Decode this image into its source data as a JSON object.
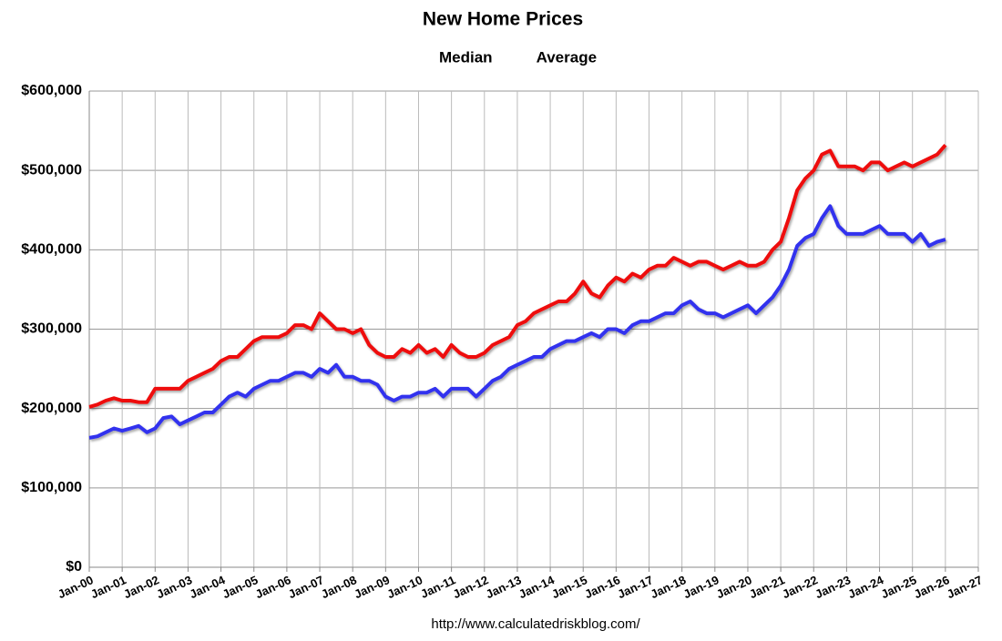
{
  "chart_data": {
    "type": "line",
    "title": "New Home Prices",
    "source": "http://www.calculatedriskblog.com/",
    "x": [
      "2000-01",
      "2000-04",
      "2000-07",
      "2000-10",
      "2001-01",
      "2001-04",
      "2001-07",
      "2001-10",
      "2002-01",
      "2002-04",
      "2002-07",
      "2002-10",
      "2003-01",
      "2003-04",
      "2003-07",
      "2003-10",
      "2004-01",
      "2004-04",
      "2004-07",
      "2004-10",
      "2005-01",
      "2005-04",
      "2005-07",
      "2005-10",
      "2006-01",
      "2006-04",
      "2006-07",
      "2006-10",
      "2007-01",
      "2007-04",
      "2007-07",
      "2007-10",
      "2008-01",
      "2008-04",
      "2008-07",
      "2008-10",
      "2009-01",
      "2009-04",
      "2009-07",
      "2009-10",
      "2010-01",
      "2010-04",
      "2010-07",
      "2010-10",
      "2011-01",
      "2011-04",
      "2011-07",
      "2011-10",
      "2012-01",
      "2012-04",
      "2012-07",
      "2012-10",
      "2013-01",
      "2013-04",
      "2013-07",
      "2013-10",
      "2014-01",
      "2014-04",
      "2014-07",
      "2014-10",
      "2015-01",
      "2015-04",
      "2015-07",
      "2015-10",
      "2016-01",
      "2016-04",
      "2016-07",
      "2016-10",
      "2017-01",
      "2017-04",
      "2017-07",
      "2017-10",
      "2018-01",
      "2018-04",
      "2018-07",
      "2018-10",
      "2019-01",
      "2019-04",
      "2019-07",
      "2019-10",
      "2020-01",
      "2020-04",
      "2020-07",
      "2020-10",
      "2021-01",
      "2021-04",
      "2021-07",
      "2021-10",
      "2022-01",
      "2022-04",
      "2022-07",
      "2022-10",
      "2023-01",
      "2023-04",
      "2023-07",
      "2023-10",
      "2024-01",
      "2024-04",
      "2024-07",
      "2024-10",
      "2025-01",
      "2025-04",
      "2025-07",
      "2025-10",
      "2026-01"
    ],
    "series": [
      {
        "name": "Median",
        "color": "#3333ee",
        "values": [
          163000,
          165000,
          170000,
          175000,
          172000,
          175000,
          178000,
          170000,
          175000,
          188000,
          190000,
          180000,
          185000,
          190000,
          195000,
          195000,
          205000,
          215000,
          220000,
          215000,
          225000,
          230000,
          235000,
          235000,
          240000,
          245000,
          245000,
          240000,
          250000,
          245000,
          255000,
          240000,
          240000,
          235000,
          235000,
          230000,
          215000,
          210000,
          215000,
          215000,
          220000,
          220000,
          225000,
          215000,
          225000,
          225000,
          225000,
          215000,
          225000,
          235000,
          240000,
          250000,
          255000,
          260000,
          265000,
          265000,
          275000,
          280000,
          285000,
          285000,
          290000,
          295000,
          290000,
          300000,
          300000,
          295000,
          305000,
          310000,
          310000,
          315000,
          320000,
          320000,
          330000,
          335000,
          325000,
          320000,
          320000,
          315000,
          320000,
          325000,
          330000,
          320000,
          330000,
          340000,
          355000,
          375000,
          405000,
          415000,
          420000,
          440000,
          455000,
          430000,
          420000,
          420000,
          420000,
          425000,
          430000,
          420000,
          420000,
          420000,
          410000,
          420000,
          405000,
          410000,
          413000
        ]
      },
      {
        "name": "Average",
        "color": "#ee1111",
        "values": [
          202000,
          205000,
          210000,
          213000,
          210000,
          210000,
          208000,
          208000,
          225000,
          225000,
          225000,
          225000,
          235000,
          240000,
          245000,
          250000,
          260000,
          265000,
          265000,
          275000,
          285000,
          290000,
          290000,
          290000,
          295000,
          305000,
          305000,
          300000,
          320000,
          310000,
          300000,
          300000,
          295000,
          300000,
          280000,
          270000,
          265000,
          265000,
          275000,
          270000,
          280000,
          270000,
          275000,
          265000,
          280000,
          270000,
          265000,
          265000,
          270000,
          280000,
          285000,
          290000,
          305000,
          310000,
          320000,
          325000,
          330000,
          335000,
          335000,
          345000,
          360000,
          345000,
          340000,
          355000,
          365000,
          360000,
          370000,
          365000,
          375000,
          380000,
          380000,
          390000,
          385000,
          380000,
          385000,
          385000,
          380000,
          375000,
          380000,
          385000,
          380000,
          380000,
          385000,
          400000,
          410000,
          440000,
          475000,
          490000,
          500000,
          520000,
          525000,
          505000,
          505000,
          505000,
          500000,
          510000,
          510000,
          500000,
          505000,
          510000,
          505000,
          510000,
          515000,
          520000,
          532000
        ]
      }
    ],
    "ylim": [
      0,
      600000
    ],
    "yticks": [
      {
        "value": 0,
        "label": "$0"
      },
      {
        "value": 100000,
        "label": "$100,000"
      },
      {
        "value": 200000,
        "label": "$200,000"
      },
      {
        "value": 300000,
        "label": "$300,000"
      },
      {
        "value": 400000,
        "label": "$400,000"
      },
      {
        "value": 500000,
        "label": "$500,000"
      },
      {
        "value": 600000,
        "label": "$600,000"
      }
    ],
    "xlim": [
      "2000-01",
      "2027-01"
    ],
    "xticks": [
      {
        "value": "2000-01",
        "label": "Jan-00"
      },
      {
        "value": "2001-01",
        "label": "Jan-01"
      },
      {
        "value": "2002-01",
        "label": "Jan-02"
      },
      {
        "value": "2003-01",
        "label": "Jan-03"
      },
      {
        "value": "2004-01",
        "label": "Jan-04"
      },
      {
        "value": "2005-01",
        "label": "Jan-05"
      },
      {
        "value": "2006-01",
        "label": "Jan-06"
      },
      {
        "value": "2007-01",
        "label": "Jan-07"
      },
      {
        "value": "2008-01",
        "label": "Jan-08"
      },
      {
        "value": "2009-01",
        "label": "Jan-09"
      },
      {
        "value": "2010-01",
        "label": "Jan-10"
      },
      {
        "value": "2011-01",
        "label": "Jan-11"
      },
      {
        "value": "2012-01",
        "label": "Jan-12"
      },
      {
        "value": "2013-01",
        "label": "Jan-13"
      },
      {
        "value": "2014-01",
        "label": "Jan-14"
      },
      {
        "value": "2015-01",
        "label": "Jan-15"
      },
      {
        "value": "2016-01",
        "label": "Jan-16"
      },
      {
        "value": "2017-01",
        "label": "Jan-17"
      },
      {
        "value": "2018-01",
        "label": "Jan-18"
      },
      {
        "value": "2019-01",
        "label": "Jan-19"
      },
      {
        "value": "2020-01",
        "label": "Jan-20"
      },
      {
        "value": "2021-01",
        "label": "Jan-21"
      },
      {
        "value": "2022-01",
        "label": "Jan-22"
      },
      {
        "value": "2023-01",
        "label": "Jan-23"
      },
      {
        "value": "2024-01",
        "label": "Jan-24"
      },
      {
        "value": "2025-01",
        "label": "Jan-25"
      },
      {
        "value": "2026-01",
        "label": "Jan-26"
      },
      {
        "value": "2027-01",
        "label": "Jan-27"
      }
    ],
    "grid": true,
    "legend": "top"
  }
}
